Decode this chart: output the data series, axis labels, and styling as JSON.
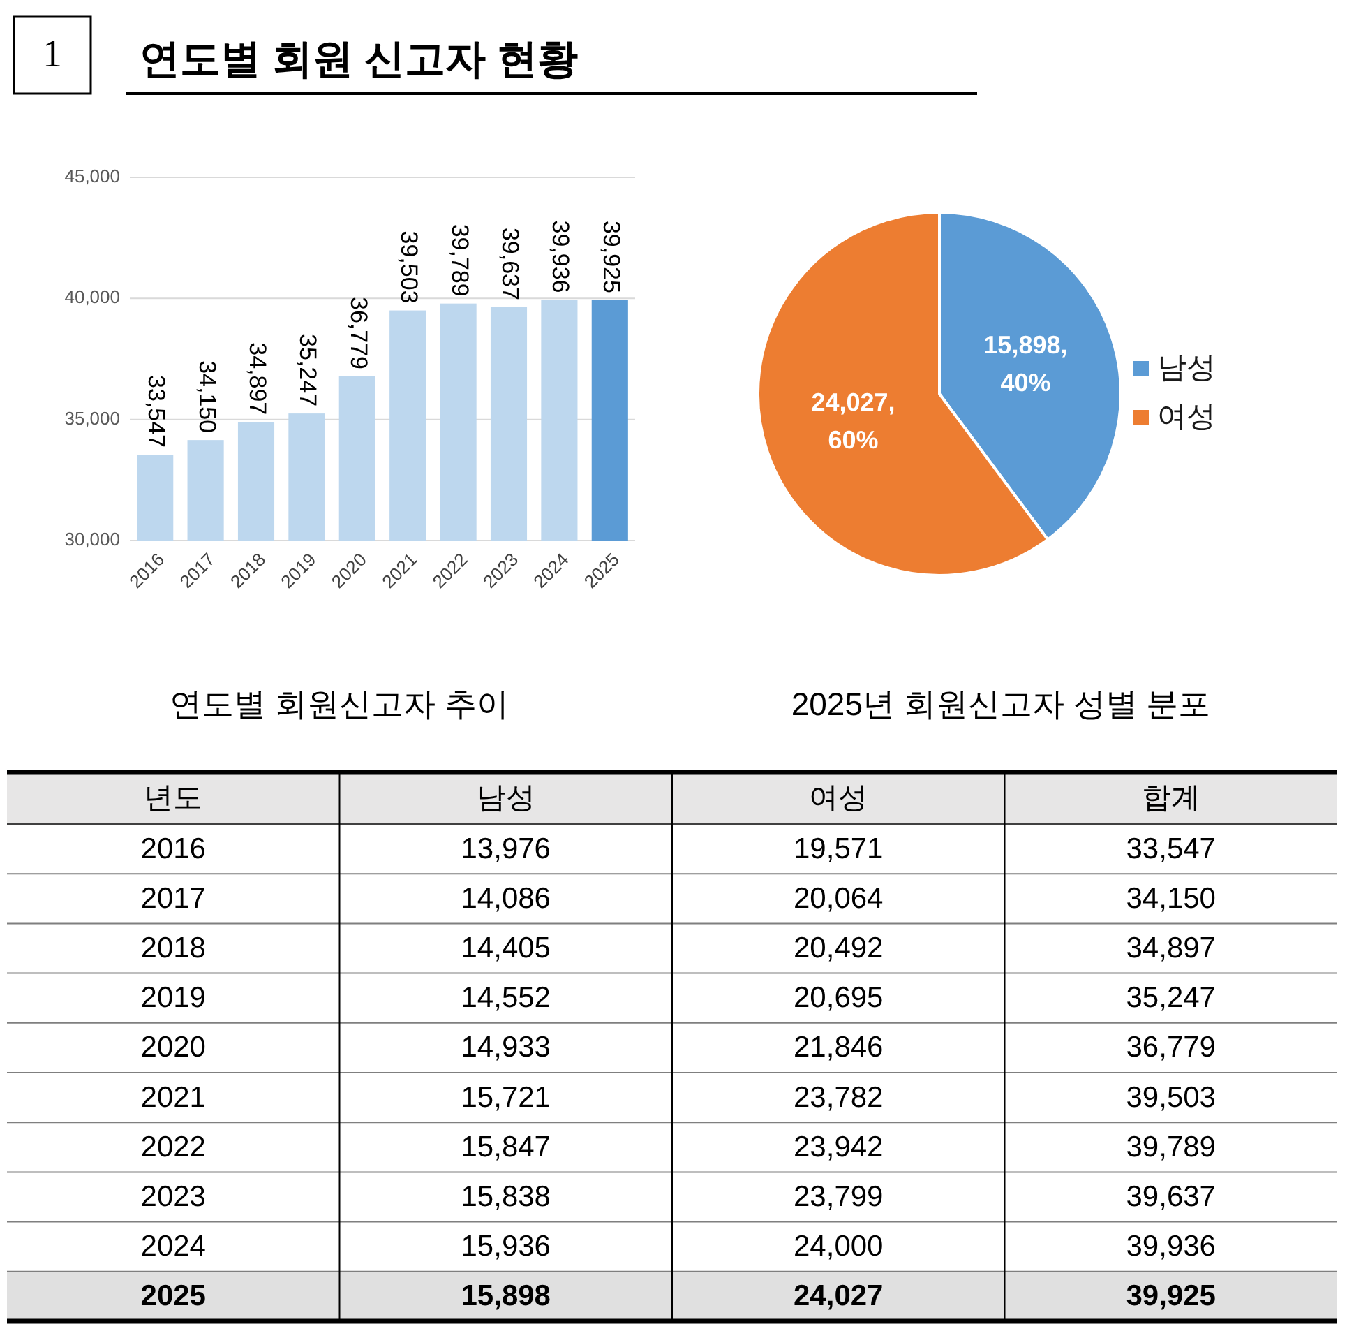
{
  "chart_data": [
    {
      "type": "other",
      "title": "연도별 회원 신고자 현황",
      "annotations": [
        "1"
      ]
    },
    {
      "type": "bar",
      "title": "연도별 회원신고자 추이",
      "categories": [
        "2016",
        "2017",
        "2018",
        "2019",
        "2020",
        "2021",
        "2022",
        "2023",
        "2024",
        "2025"
      ],
      "values": [
        33547,
        34150,
        34897,
        35247,
        36779,
        39503,
        39789,
        39637,
        39936,
        39925
      ],
      "value_labels": [
        "33,547",
        "34,150",
        "34,897",
        "35,247",
        "36,779",
        "39,503",
        "39,789",
        "39,637",
        "39,936",
        "39,925"
      ],
      "colors": [
        "#bdd7ee",
        "#bdd7ee",
        "#bdd7ee",
        "#bdd7ee",
        "#bdd7ee",
        "#bdd7ee",
        "#bdd7ee",
        "#bdd7ee",
        "#bdd7ee",
        "#5b9bd5"
      ],
      "ylim": [
        30000,
        45000
      ],
      "yticks": [
        {
          "value": 30000,
          "label": "30,000"
        },
        {
          "value": 35000,
          "label": "35,000"
        },
        {
          "value": 40000,
          "label": "40,000"
        },
        {
          "value": 45000,
          "label": "45,000"
        }
      ],
      "grid": "y"
    },
    {
      "type": "pie",
      "title": "2025년 회원신고자 성별 분포",
      "categories": [
        "남성",
        "여성"
      ],
      "values": [
        15898,
        24027
      ],
      "colors": [
        "#5b9bd5",
        "#ed7d31"
      ],
      "value_labels": [
        "15,898, 40%",
        "24,027, 60%"
      ],
      "legend": "right"
    },
    {
      "type": "heatmap",
      "ylabel": "년도",
      "categories": [
        "남성",
        "여성",
        "합계"
      ],
      "y_categories": [
        "2016",
        "2017",
        "2018",
        "2019",
        "2020",
        "2021",
        "2022",
        "2023",
        "2024",
        "2025"
      ],
      "cells": [
        [
          13976,
          19571,
          33547
        ],
        [
          14086,
          20064,
          34150
        ],
        [
          14405,
          20492,
          34897
        ],
        [
          14552,
          20695,
          35247
        ],
        [
          14933,
          21846,
          36779
        ],
        [
          15721,
          23782,
          39503
        ],
        [
          15847,
          23942,
          39789
        ],
        [
          15838,
          23799,
          39637
        ],
        [
          15936,
          24000,
          39936
        ],
        [
          15898,
          24027,
          39925
        ]
      ],
      "cell_labels": [
        [
          "13,976",
          "19,571",
          "33,547"
        ],
        [
          "14,086",
          "20,064",
          "34,150"
        ],
        [
          "14,405",
          "20,492",
          "34,897"
        ],
        [
          "14,552",
          "20,695",
          "35,247"
        ],
        [
          "14,933",
          "21,846",
          "36,779"
        ],
        [
          "15,721",
          "23,782",
          "39,503"
        ],
        [
          "15,847",
          "23,942",
          "39,789"
        ],
        [
          "15,838",
          "23,799",
          "39,637"
        ],
        [
          "15,936",
          "24,000",
          "39,936"
        ],
        [
          "15,898",
          "24,027",
          "39,925"
        ]
      ],
      "bands": [
        {
          "axis": "y",
          "from": "2025",
          "to": "2025",
          "color": "#e0e0e0"
        }
      ]
    }
  ]
}
